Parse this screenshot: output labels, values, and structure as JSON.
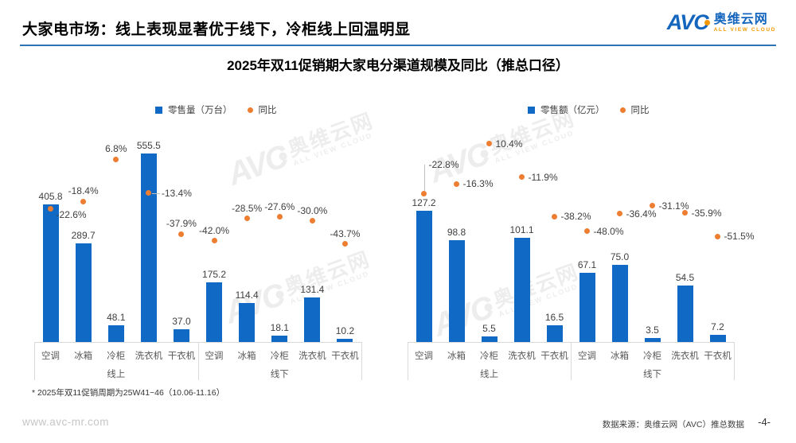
{
  "header": {
    "title": "大家电市场：线上表现显著优于线下，冷柜线上回温明显",
    "logo": {
      "text": "AVC",
      "cn": "奥维云网",
      "en": "ALL VIEW CLOUD"
    }
  },
  "chart_title": "2025年双11促销期大家电分渠道规模及同比（推总口径）",
  "watermark": {
    "text": "AVC",
    "cn": "奥维云网",
    "en": "ALL VIEW CLOUD"
  },
  "colors": {
    "bar": "#1169C6",
    "yoy_dot": "#ED7D31",
    "header_line": "#2E74B5",
    "axis_line": "#D9D9D9",
    "logo_blue": "#1465BE",
    "logo_orange": "#F39800"
  },
  "chart_data": [
    {
      "type": "bar",
      "name": "零售量（万台）及同比（左图）",
      "legend": [
        "零售量（万台）",
        "同比"
      ],
      "secondary_series": "scatter",
      "groups": [
        {
          "label": "线上",
          "categories": [
            "空调",
            "冰箱",
            "冷柜",
            "洗衣机",
            "干衣机"
          ],
          "bar_values": [
            405.8,
            289.7,
            48.1,
            555.5,
            37.0
          ],
          "pct_values": [
            -22.6,
            -18.4,
            6.8,
            -13.4,
            -37.9
          ]
        },
        {
          "label": "线下",
          "categories": [
            "空调",
            "冰箱",
            "冷柜",
            "洗衣机",
            "干衣机"
          ],
          "bar_values": [
            175.2,
            114.4,
            18.1,
            131.4,
            10.2
          ],
          "pct_values": [
            -42.0,
            -28.5,
            -27.6,
            -30.0,
            -43.7
          ]
        }
      ]
    },
    {
      "type": "bar",
      "name": "零售额（亿元）及同比（右图）",
      "legend": [
        "零售额（亿元）",
        "同比"
      ],
      "secondary_series": "scatter",
      "groups": [
        {
          "label": "线上",
          "categories": [
            "空调",
            "冰箱",
            "冷柜",
            "洗衣机",
            "干衣机"
          ],
          "bar_values": [
            127.2,
            98.8,
            5.5,
            101.1,
            16.5
          ],
          "pct_values": [
            -22.8,
            -16.3,
            10.4,
            -11.9,
            -38.2
          ]
        },
        {
          "label": "线下",
          "categories": [
            "空调",
            "冰箱",
            "冷柜",
            "洗衣机",
            "干衣机"
          ],
          "bar_values": [
            67.1,
            75.0,
            3.5,
            54.5,
            7.2
          ],
          "pct_values": [
            -48.0,
            -36.4,
            -31.1,
            -35.9,
            -51.5
          ]
        }
      ]
    }
  ],
  "footer": {
    "note": "* 2025年双11促销周期为25W41~46（10.06-11.16）",
    "website": "www.avc-mr.com",
    "source": "数据来源：奥维云网（AVC）推总数据",
    "page": "-4-"
  }
}
